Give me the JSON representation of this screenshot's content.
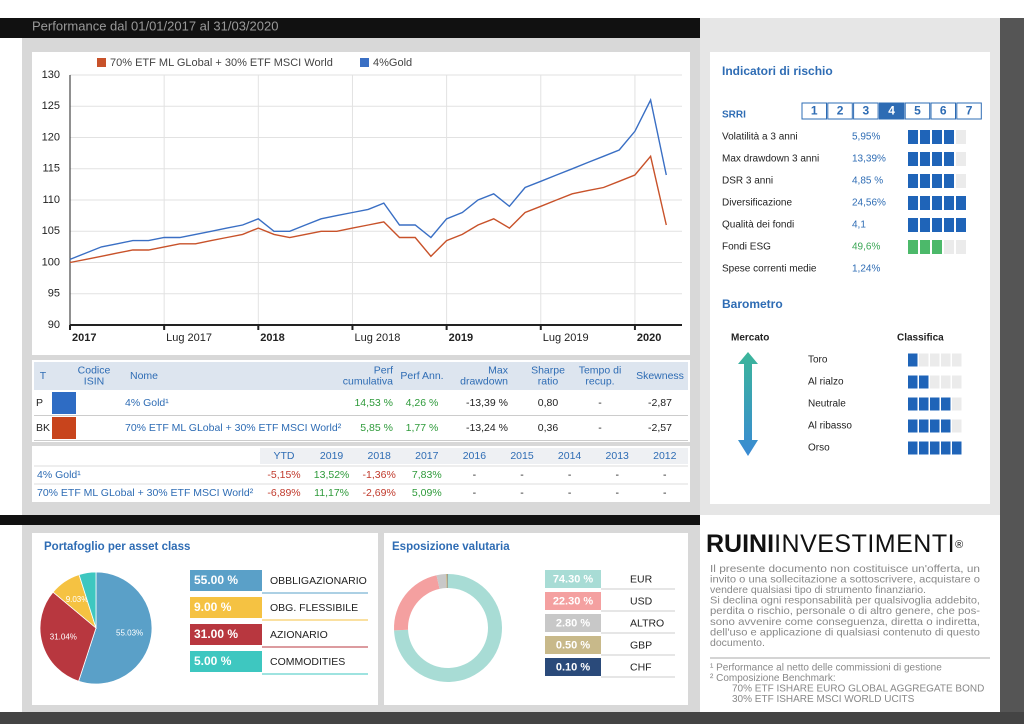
{
  "header": {
    "title": "Performance dal 01/01/2017 al 31/03/2020"
  },
  "chart_data": {
    "type": "line",
    "x": [
      "2017-01",
      "2017-02",
      "2017-03",
      "2017-04",
      "2017-05",
      "2017-06",
      "2017-07",
      "2017-08",
      "2017-09",
      "2017-10",
      "2017-11",
      "2017-12",
      "2018-01",
      "2018-02",
      "2018-03",
      "2018-04",
      "2018-05",
      "2018-06",
      "2018-07",
      "2018-08",
      "2018-09",
      "2018-10",
      "2018-11",
      "2018-12",
      "2019-01",
      "2019-02",
      "2019-03",
      "2019-04",
      "2019-05",
      "2019-06",
      "2019-07",
      "2019-08",
      "2019-09",
      "2019-10",
      "2019-11",
      "2019-12",
      "2020-01",
      "2020-02",
      "2020-03"
    ],
    "series": [
      {
        "name": "70% ETF ML GLobal + 30% ETF MSCI World",
        "color": "#c8522a",
        "values": [
          100,
          100.5,
          101,
          101.5,
          102,
          102,
          102.5,
          103,
          103,
          103.5,
          104,
          104.5,
          105.5,
          104.5,
          104,
          104.5,
          105,
          105,
          105.5,
          106,
          106.5,
          104,
          104,
          101,
          103.5,
          104.5,
          106,
          107,
          105.5,
          108,
          109,
          110,
          111,
          111.5,
          112,
          113,
          114,
          117,
          106
        ]
      },
      {
        "name": "4%Gold",
        "color": "#3a6fc4",
        "values": [
          100.5,
          101.5,
          102.5,
          103,
          103.5,
          103.5,
          104,
          104,
          104.5,
          105,
          105.5,
          106,
          107,
          105,
          105,
          106,
          107,
          107.5,
          108,
          108.5,
          109.5,
          106,
          106,
          104,
          107,
          108,
          110,
          111,
          109,
          112,
          113,
          114,
          115,
          116,
          117,
          118,
          121,
          126,
          114
        ]
      }
    ],
    "xlim": [
      "2017-01",
      "2020-04"
    ],
    "xticks": [
      {
        "value": "2017-01",
        "label": "2017"
      },
      {
        "value": "2017-07",
        "label": "Lug 2017"
      },
      {
        "value": "2018-01",
        "label": "2018"
      },
      {
        "value": "2018-07",
        "label": "Lug 2018"
      },
      {
        "value": "2019-01",
        "label": "2019"
      },
      {
        "value": "2019-07",
        "label": "Lug 2019"
      },
      {
        "value": "2020-01",
        "label": "2020"
      }
    ],
    "ylim": [
      90,
      130
    ],
    "yticks": [
      90,
      95,
      100,
      105,
      110,
      115,
      120,
      125,
      130
    ],
    "grid": true,
    "legend": "top"
  },
  "performance_table": {
    "headers": [
      [
        "T"
      ],
      [
        "Codice",
        "ISIN"
      ],
      [
        "Nome"
      ],
      [
        "Perf",
        "cumulativa"
      ],
      [
        "Perf Ann."
      ],
      [
        "Max",
        "drawdown"
      ],
      [
        "Sharpe",
        "ratio"
      ],
      [
        "Tempo di",
        "recup."
      ],
      [
        "Skewness"
      ]
    ],
    "rows": [
      {
        "type": "P",
        "color": "#2e6cc4",
        "name": "4% Gold¹",
        "cells": [
          "14,53 %",
          "4,26 %",
          "-13,39 %",
          "0,80",
          "-",
          "-2,87"
        ]
      },
      {
        "type": "BK",
        "color": "#c8441c",
        "name": "70% ETF ML GLobal + 30% ETF MSCI World²",
        "cells": [
          "5,85 %",
          "1,77 %",
          "-13,24 %",
          "0,36",
          "-",
          "-2,57"
        ]
      }
    ]
  },
  "yearly_table": {
    "headers": [
      "YTD",
      "2019",
      "2018",
      "2017",
      "2016",
      "2015",
      "2014",
      "2013",
      "2012"
    ],
    "rows": [
      {
        "name": "4% Gold¹",
        "cells": [
          "-5,15%",
          "13,52%",
          "-1,36%",
          "7,83%",
          "-",
          "-",
          "-",
          "-",
          "-"
        ]
      },
      {
        "name": "70% ETF ML GLobal + 30% ETF MSCI World²",
        "cells": [
          "-6,89%",
          "11,17%",
          "-2,69%",
          "5,09%",
          "-",
          "-",
          "-",
          "-",
          "-"
        ]
      }
    ]
  },
  "risk": {
    "title": "Indicatori di rischio",
    "srri_label": "SRRI",
    "srri_scale": [
      1,
      2,
      3,
      4,
      5,
      6,
      7
    ],
    "srri": 4,
    "max_bars": 5,
    "rows": [
      {
        "label": "Volatilità a 3 anni",
        "value": "5,95%",
        "bars": 4,
        "color": "#1f64b8"
      },
      {
        "label": "Max drawdown 3 anni",
        "value": "13,39%",
        "bars": 4,
        "color": "#1f64b8"
      },
      {
        "label": "DSR 3 anni",
        "value": "4,85 %",
        "bars": 4,
        "color": "#1f64b8"
      },
      {
        "label": "Diversificazione",
        "value": "24,56%",
        "bars": 5,
        "color": "#1f64b8"
      },
      {
        "label": "Qualità dei fondi",
        "value": "4,1",
        "bars": 5,
        "color": "#1f64b8"
      },
      {
        "label": "Fondi ESG",
        "value": "49,6%",
        "bars": 3,
        "color": "#4cb96a"
      },
      {
        "label": "Spese correnti medie",
        "value": "1,24%",
        "bars": 0,
        "color": "#1f64b8"
      }
    ]
  },
  "barometer": {
    "title": "Barometro",
    "market_label": "Mercato",
    "rank_label": "Classifica",
    "max_bars": 5,
    "rows": [
      {
        "label": "Toro",
        "bars": 1
      },
      {
        "label": "Al rialzo",
        "bars": 2
      },
      {
        "label": "Neutrale",
        "bars": 4
      },
      {
        "label": "Al ribasso",
        "bars": 4
      },
      {
        "label": "Orso",
        "bars": 5
      }
    ]
  },
  "portfolio": {
    "title": "Portafoglio per asset class",
    "chart": {
      "type": "pie",
      "values": [
        55.03,
        31.04,
        9.03,
        4.9
      ],
      "value_labels": [
        "55.03%",
        "31.04%",
        "9.03%",
        null
      ],
      "colors": [
        "#5aa0c8",
        "#b8373f",
        "#f5c242",
        "#3ec7c0"
      ]
    },
    "legend": [
      {
        "value": "55.00 %",
        "name": "OBBLIGAZIONARIO",
        "color": "#5aa0c8"
      },
      {
        "value": "9.00 %",
        "name": "OBG. FLESSIBILE",
        "color": "#f5c242"
      },
      {
        "value": "31.00 %",
        "name": "AZIONARIO",
        "color": "#b8373f"
      },
      {
        "value": "5.00 %",
        "name": "COMMODITIES",
        "color": "#3ec7c0"
      }
    ]
  },
  "currency": {
    "title": "Esposizione valutaria",
    "chart": {
      "type": "donut",
      "categories": [
        "EUR",
        "USD",
        "ALTRO",
        "GBP",
        "CHF"
      ],
      "values": [
        74.3,
        22.3,
        2.8,
        0.5,
        0.1
      ],
      "value_labels": [
        "74.30 %",
        "22.30 %",
        "2.80 %",
        "0.50 %",
        "0.10 %"
      ],
      "colors": [
        "#a8dcd5",
        "#f4a0a0",
        "#c8c8c8",
        "#c8b98a",
        "#2a4a7a"
      ]
    }
  },
  "logo": {
    "bold": "RUINI",
    "light": "INVESTIMENTI",
    "mark": "®"
  },
  "disclaimer": [
    "Il presente documento non costituisce un'offerta, un",
    "invito o una sollecitazione a sottoscrivere, acquistare o",
    "vendere qualsiasi tipo di strumento finanziario.",
    "Si declina ogni responsabilità per qualsivoglia addebito,",
    "perdita o rischio, personale o di altro genere, che pos-",
    "sono avvenire come conseguenza, diretta o indiretta,",
    "dell'uso e applicazione di qualsiasi contenuto di questo",
    "documento."
  ],
  "notes": [
    "¹ Performance al netto delle commissioni  di gestione",
    "² Composizione Benchmark:",
    "70% ETF ISHARE EURO GLOBAL AGGREGATE BOND",
    "30% ETF ISHARE MSCI WORLD UCITS"
  ]
}
